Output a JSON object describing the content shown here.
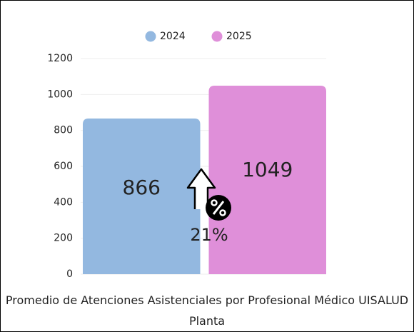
{
  "chart_data": {
    "type": "bar",
    "categories": [
      "Promedio de Atenciones Asistenciales por  Profesional Médico UISALUD Planta"
    ],
    "series": [
      {
        "name": "2024",
        "color": "#93b8e0",
        "values": [
          866
        ]
      },
      {
        "name": "2025",
        "color": "#df8fd9",
        "values": [
          1049
        ]
      }
    ],
    "ylim": [
      0,
      1200
    ],
    "yticks": [
      0,
      200,
      400,
      600,
      800,
      1000,
      1200
    ],
    "grid": true,
    "legend": "top",
    "annotations": [
      "21%"
    ]
  }
}
